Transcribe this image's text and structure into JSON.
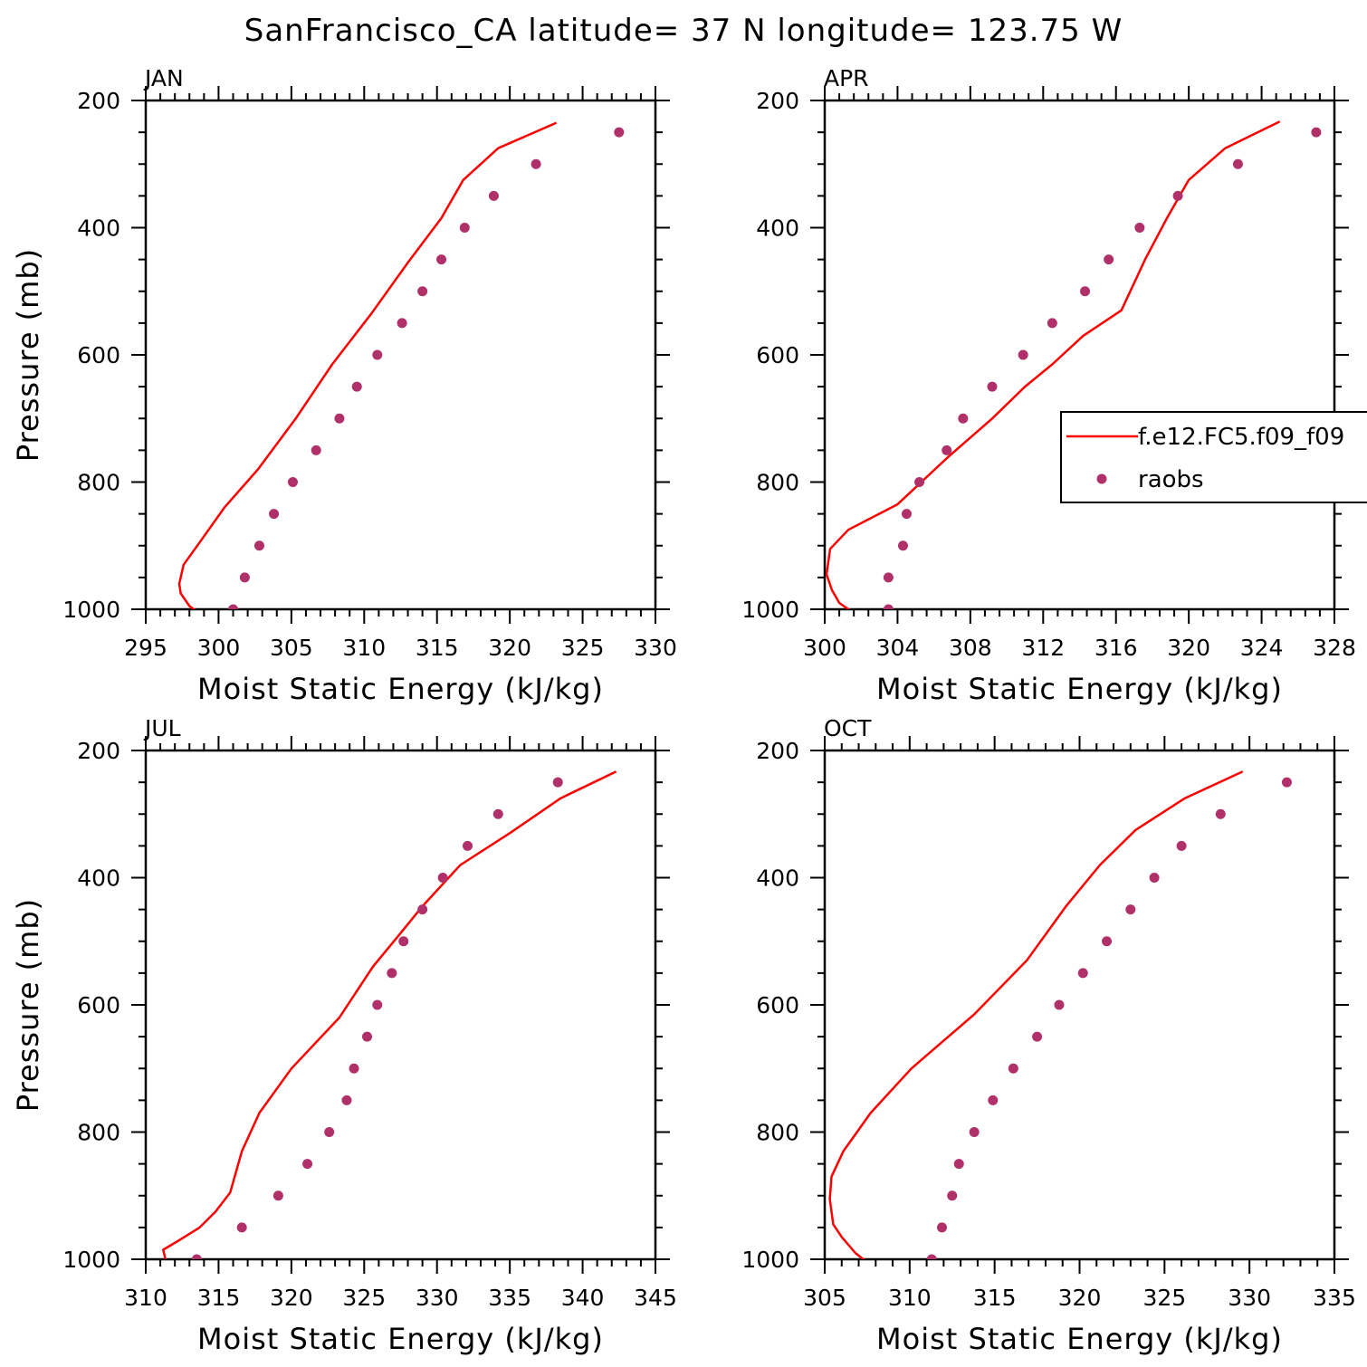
{
  "title": "SanFrancisco_CA  latitude= 37 N longitude= 123.75 W",
  "colors": {
    "model": "#ff0000",
    "obs": "#b0306a",
    "axis": "#000000"
  },
  "legend": {
    "model_label": "f.e12.FC5.f09_f09",
    "obs_label": "raobs"
  },
  "chart_data": [
    {
      "type": "line",
      "panel": "JAN",
      "xlabel": "Moist Static Energy (kJ/kg)",
      "ylabel": "Pressure (mb)",
      "xlim": [
        295,
        330
      ],
      "ylim": [
        200,
        1000
      ],
      "y_inverted": true,
      "xticks": [
        295,
        300,
        305,
        310,
        315,
        320,
        325,
        330
      ],
      "yticks": [
        200,
        400,
        600,
        800,
        1000
      ],
      "series": [
        {
          "name": "f.e12.FC5.f09_f09",
          "kind": "line",
          "x": [
            323.2,
            319.2,
            316.8,
            315.3,
            313.0,
            310.5,
            307.8,
            305.3,
            302.7,
            300.4,
            298.7,
            297.6,
            297.3,
            297.4,
            298.0,
            299.0
          ],
          "y": [
            235,
            275,
            325,
            385,
            455,
            535,
            615,
            700,
            780,
            840,
            895,
            930,
            960,
            975,
            995,
            1012
          ]
        },
        {
          "name": "raobs",
          "kind": "scatter",
          "x": [
            327.5,
            321.8,
            318.9,
            316.9,
            315.3,
            314.0,
            312.6,
            310.9,
            309.5,
            308.3,
            306.7,
            305.1,
            303.8,
            302.8,
            301.8,
            301.0
          ],
          "y": [
            250,
            300,
            350,
            400,
            450,
            500,
            550,
            600,
            650,
            700,
            750,
            800,
            850,
            900,
            950,
            1000
          ]
        }
      ]
    },
    {
      "type": "line",
      "panel": "APR",
      "xlabel": "Moist Static Energy (kJ/kg)",
      "ylabel": "",
      "xlim": [
        300,
        328
      ],
      "ylim": [
        200,
        1000
      ],
      "y_inverted": true,
      "xticks": [
        300,
        304,
        308,
        312,
        316,
        320,
        324,
        328
      ],
      "yticks": [
        200,
        400,
        600,
        800,
        1000
      ],
      "series": [
        {
          "name": "f.e12.FC5.f09_f09",
          "kind": "line",
          "x": [
            325.0,
            322.0,
            320.0,
            318.8,
            317.6,
            316.3,
            314.2,
            312.5,
            311.0,
            309.2,
            306.8,
            304.0,
            301.3,
            300.3,
            300.1,
            300.4,
            300.8,
            301.3,
            301.8
          ],
          "y": [
            233,
            275,
            325,
            385,
            450,
            530,
            570,
            615,
            650,
            700,
            760,
            835,
            875,
            905,
            945,
            970,
            990,
            1000,
            1010
          ]
        },
        {
          "name": "raobs",
          "kind": "scatter",
          "x": [
            327.0,
            322.7,
            319.4,
            317.3,
            315.6,
            314.3,
            312.5,
            310.9,
            309.2,
            307.6,
            306.7,
            305.2,
            304.5,
            304.3,
            303.5,
            303.5
          ],
          "y": [
            250,
            300,
            350,
            400,
            450,
            500,
            550,
            600,
            650,
            700,
            750,
            800,
            850,
            900,
            950,
            1000
          ]
        }
      ]
    },
    {
      "type": "line",
      "panel": "JUL",
      "xlabel": "Moist Static Energy (kJ/kg)",
      "ylabel": "Pressure (mb)",
      "xlim": [
        310,
        345
      ],
      "ylim": [
        200,
        1000
      ],
      "y_inverted": true,
      "xticks": [
        310,
        315,
        320,
        325,
        330,
        335,
        340,
        345
      ],
      "yticks": [
        200,
        400,
        600,
        800,
        1000
      ],
      "series": [
        {
          "name": "f.e12.FC5.f09_f09",
          "kind": "line",
          "x": [
            342.3,
            338.5,
            335.0,
            331.6,
            329.0,
            327.4,
            325.6,
            323.3,
            320.0,
            317.8,
            316.6,
            315.8,
            314.8,
            313.7,
            312.3,
            311.2,
            311.4
          ],
          "y": [
            233,
            275,
            330,
            380,
            445,
            490,
            540,
            620,
            700,
            770,
            830,
            895,
            925,
            950,
            970,
            985,
            1005
          ]
        },
        {
          "name": "raobs",
          "kind": "scatter",
          "x": [
            338.3,
            334.2,
            332.1,
            330.4,
            329.0,
            327.7,
            326.9,
            325.9,
            325.2,
            324.3,
            323.8,
            322.6,
            321.1,
            319.1,
            316.6,
            313.5
          ],
          "y": [
            250,
            300,
            350,
            400,
            450,
            500,
            550,
            600,
            650,
            700,
            750,
            800,
            850,
            900,
            950,
            1000
          ]
        }
      ]
    },
    {
      "type": "line",
      "panel": "OCT",
      "xlabel": "Moist Static Energy (kJ/kg)",
      "ylabel": "",
      "xlim": [
        305,
        335
      ],
      "ylim": [
        200,
        1000
      ],
      "y_inverted": true,
      "xticks": [
        305,
        310,
        315,
        320,
        325,
        330,
        335
      ],
      "yticks": [
        200,
        400,
        600,
        800,
        1000
      ],
      "series": [
        {
          "name": "f.e12.FC5.f09_f09",
          "kind": "line",
          "x": [
            329.6,
            326.2,
            323.3,
            321.2,
            319.2,
            316.9,
            313.8,
            310.1,
            307.7,
            306.1,
            305.4,
            305.3,
            305.5,
            306.0,
            306.8,
            307.6
          ],
          "y": [
            233,
            275,
            325,
            380,
            445,
            530,
            615,
            700,
            770,
            830,
            870,
            905,
            945,
            965,
            990,
            1007
          ]
        },
        {
          "name": "raobs",
          "kind": "scatter",
          "x": [
            332.2,
            328.3,
            326.0,
            324.4,
            323.0,
            321.6,
            320.2,
            318.8,
            317.5,
            316.1,
            314.9,
            313.8,
            312.9,
            312.5,
            311.9,
            311.3
          ],
          "y": [
            250,
            300,
            350,
            400,
            450,
            500,
            550,
            600,
            650,
            700,
            750,
            800,
            850,
            900,
            950,
            1000
          ]
        }
      ]
    }
  ]
}
